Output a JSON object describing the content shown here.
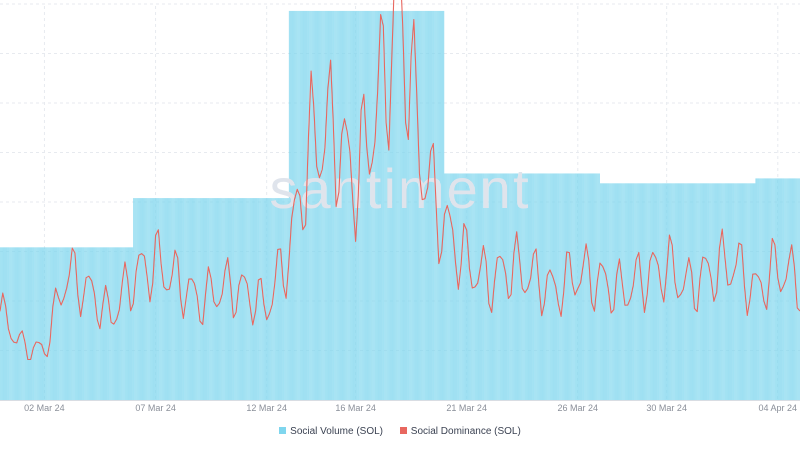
{
  "chart_data": {
    "type": "bar",
    "title": "",
    "xlabel": "",
    "ylabel": "",
    "x_tick_labels": [
      "02 Mar 24",
      "07 Mar 24",
      "12 Mar 24",
      "16 Mar 24",
      "21 Mar 24",
      "26 Mar 24",
      "30 Mar 24",
      "04 Apr 24"
    ],
    "grid": true,
    "legend_placement": "bottom-center",
    "watermark": "santiment",
    "series": [
      {
        "name": "Social Volume (SOL)",
        "type": "bar",
        "color": "#7fd6ee",
        "bar_period": "hourly",
        "weekly_levels": [
          {
            "start": "2024-02-29",
            "end": "2024-03-06",
            "value": 31
          },
          {
            "start": "2024-03-06",
            "end": "2024-03-13",
            "value": 41
          },
          {
            "start": "2024-03-13",
            "end": "2024-03-20",
            "value": 79
          },
          {
            "start": "2024-03-20",
            "end": "2024-03-27",
            "value": 46
          },
          {
            "start": "2024-03-27",
            "end": "2024-04-03",
            "value": 44
          },
          {
            "start": "2024-04-03",
            "end": "2024-04-05",
            "value": 45
          }
        ]
      },
      {
        "name": "Social Dominance (SOL)",
        "type": "line",
        "color": "#e8675f",
        "values": [
          {
            "x": "2024-02-29",
            "y": 18
          },
          {
            "x": "2024-03-01",
            "y": 11
          },
          {
            "x": "2024-03-02",
            "y": 10
          },
          {
            "x": "2024-03-03",
            "y": 26
          },
          {
            "x": "2024-03-04",
            "y": 22
          },
          {
            "x": "2024-03-05",
            "y": 17
          },
          {
            "x": "2024-03-06",
            "y": 25
          },
          {
            "x": "2024-03-07",
            "y": 28
          },
          {
            "x": "2024-03-08",
            "y": 24
          },
          {
            "x": "2024-03-09",
            "y": 20
          },
          {
            "x": "2024-03-10",
            "y": 23
          },
          {
            "x": "2024-03-11",
            "y": 22
          },
          {
            "x": "2024-03-12",
            "y": 19
          },
          {
            "x": "2024-03-13",
            "y": 30
          },
          {
            "x": "2024-03-14",
            "y": 52
          },
          {
            "x": "2024-03-15",
            "y": 55
          },
          {
            "x": "2024-03-16",
            "y": 44
          },
          {
            "x": "2024-03-17",
            "y": 60
          },
          {
            "x": "2024-03-18",
            "y": 80
          },
          {
            "x": "2024-03-19",
            "y": 48
          },
          {
            "x": "2024-03-20",
            "y": 35
          },
          {
            "x": "2024-03-21",
            "y": 28
          },
          {
            "x": "2024-03-22",
            "y": 24
          },
          {
            "x": "2024-03-23",
            "y": 27
          },
          {
            "x": "2024-03-24",
            "y": 25
          },
          {
            "x": "2024-03-25",
            "y": 22
          },
          {
            "x": "2024-03-26",
            "y": 26
          },
          {
            "x": "2024-03-27",
            "y": 24
          },
          {
            "x": "2024-03-28",
            "y": 22
          },
          {
            "x": "2024-03-29",
            "y": 25
          },
          {
            "x": "2024-03-30",
            "y": 27
          },
          {
            "x": "2024-03-31",
            "y": 23
          },
          {
            "x": "2024-04-01",
            "y": 26
          },
          {
            "x": "2024-04-02",
            "y": 28
          },
          {
            "x": "2024-04-03",
            "y": 22
          },
          {
            "x": "2024-04-04",
            "y": 27
          },
          {
            "x": "2024-04-05",
            "y": 24
          }
        ]
      }
    ]
  }
}
